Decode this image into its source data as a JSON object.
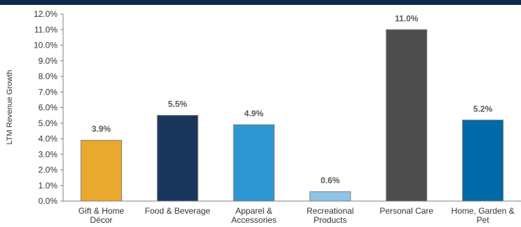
{
  "page": {
    "top_bar_color": "#0b2a4a"
  },
  "chart_data": {
    "type": "bar",
    "ylabel": "LTM Revenue Growth",
    "xlabel": "",
    "ylim": [
      0,
      12
    ],
    "ytick_step": 1,
    "ytick_format": "percent_1dp",
    "grid": false,
    "legend": "none",
    "categories": [
      [
        "Gift & Home",
        "Décor"
      ],
      [
        "Food & Beverage"
      ],
      [
        "Apparel &",
        "Accessories"
      ],
      [
        "Recreational",
        "Products"
      ],
      [
        "Personal Care"
      ],
      [
        "Home, Garden &",
        "Pet"
      ]
    ],
    "values": [
      3.9,
      5.5,
      4.9,
      0.6,
      11.0,
      5.2
    ],
    "data_labels": [
      "3.9%",
      "5.5%",
      "4.9%",
      "0.6%",
      "11.0%",
      "5.2%"
    ],
    "colors": [
      "#e9a82e",
      "#1b365d",
      "#2e96d2",
      "#8ec5e6",
      "#4d4d4d",
      "#0069a7"
    ]
  }
}
